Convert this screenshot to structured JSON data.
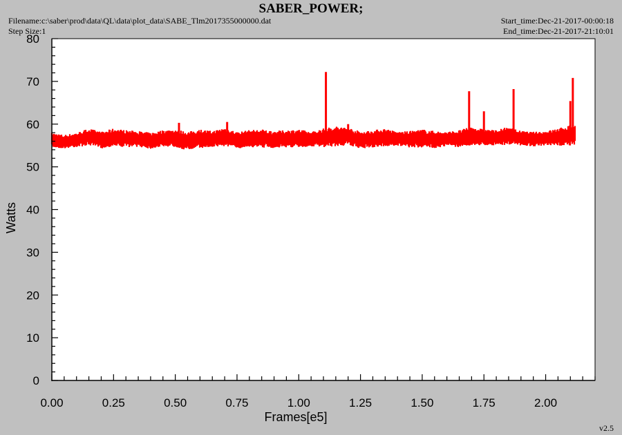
{
  "header": {
    "title": "SABER_POWER;",
    "filename": "Filename:c:\\saber\\prod\\data\\QL\\data\\plot_data\\SABE_Tlm2017355000000.dat",
    "step_size": "Step Size:1",
    "start_time": "Start_time:Dec-21-2017-00:00:18",
    "end_time": "End_time:Dec-21-2017-21:10:01",
    "version": "v2.5"
  },
  "chart_data": {
    "type": "line",
    "title": "SABER_POWER;",
    "xlabel": "Frames[e5]",
    "ylabel": "Watts",
    "xlim": [
      0,
      2.2
    ],
    "ylim": [
      0,
      80
    ],
    "x_ticks": [
      "0.00",
      "0.25",
      "0.50",
      "0.75",
      "1.00",
      "1.25",
      "1.50",
      "1.75",
      "2.00"
    ],
    "y_ticks": [
      "0",
      "10",
      "20",
      "30",
      "40",
      "50",
      "60",
      "70",
      "80"
    ],
    "grid": false,
    "series": [
      {
        "color": "#ff0000",
        "band": {
          "x": [
            0.0,
            0.05,
            0.1,
            0.15,
            0.2,
            0.25,
            0.3,
            0.35,
            0.4,
            0.45,
            0.5,
            0.55,
            0.6,
            0.65,
            0.7,
            0.75,
            0.8,
            0.85,
            0.9,
            0.95,
            1.0,
            1.05,
            1.1,
            1.15,
            1.2,
            1.25,
            1.3,
            1.35,
            1.4,
            1.45,
            1.5,
            1.55,
            1.6,
            1.65,
            1.7,
            1.75,
            1.8,
            1.85,
            1.9,
            1.95,
            2.0,
            2.05,
            2.1,
            2.12
          ],
          "low": [
            54.5,
            54.3,
            54.6,
            55.0,
            54.3,
            54.8,
            54.6,
            54.7,
            54.2,
            54.8,
            54.6,
            53.8,
            54.4,
            54.6,
            54.8,
            54.3,
            54.6,
            54.5,
            54.4,
            54.6,
            54.4,
            54.8,
            54.5,
            54.8,
            55.0,
            54.3,
            54.5,
            54.8,
            54.9,
            54.5,
            54.5,
            54.4,
            54.8,
            54.6,
            55.0,
            55.0,
            55.0,
            55.2,
            55.0,
            54.8,
            54.8,
            54.9,
            55.0,
            55.0
          ],
          "high": [
            58.0,
            57.5,
            58.0,
            59.0,
            58.2,
            59.0,
            58.6,
            58.4,
            58.0,
            58.6,
            58.8,
            58.2,
            58.8,
            58.4,
            59.2,
            58.2,
            58.6,
            58.8,
            58.4,
            58.6,
            58.8,
            58.2,
            59.0,
            59.5,
            59.2,
            58.3,
            58.6,
            59.0,
            58.2,
            58.4,
            58.8,
            58.4,
            58.2,
            58.6,
            59.4,
            58.8,
            58.6,
            59.4,
            58.4,
            58.2,
            58.4,
            59.0,
            59.8,
            59.8
          ]
        },
        "spikes": [
          {
            "x": 1.11,
            "y": 72.2
          },
          {
            "x": 1.69,
            "y": 67.7
          },
          {
            "x": 1.75,
            "y": 63.0
          },
          {
            "x": 1.87,
            "y": 68.2
          },
          {
            "x": 2.1,
            "y": 65.4
          },
          {
            "x": 2.11,
            "y": 70.8
          },
          {
            "x": 0.515,
            "y": 60.3
          },
          {
            "x": 0.71,
            "y": 60.5
          },
          {
            "x": 1.2,
            "y": 60.0
          }
        ]
      }
    ]
  }
}
